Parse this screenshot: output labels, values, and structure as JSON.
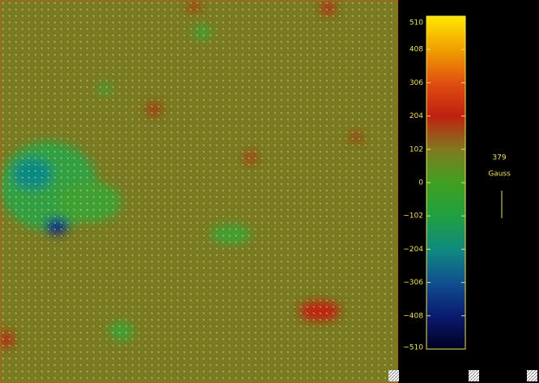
{
  "chart_data": {
    "type": "heatmap",
    "colorbar": {
      "lim": [
        -510,
        510
      ],
      "ticks": [
        510,
        408,
        306,
        204,
        102,
        0,
        {
          "value": -102,
          "label": "−102"
        },
        {
          "value": -204,
          "label": "−204"
        },
        {
          "value": -306,
          "label": "−306"
        },
        {
          "value": -408,
          "label": "−408"
        },
        {
          "value": -510,
          "label": "−510"
        }
      ],
      "colors": [
        "#000020",
        "#0a1a70",
        "#105090",
        "#108a80",
        "#20a040",
        "#40a020",
        "#807a20",
        "#c02010",
        "#e05010",
        "#f0a000",
        "#ffe800"
      ]
    },
    "vector_scale": {
      "value": 379,
      "unit": "Gauss"
    }
  }
}
